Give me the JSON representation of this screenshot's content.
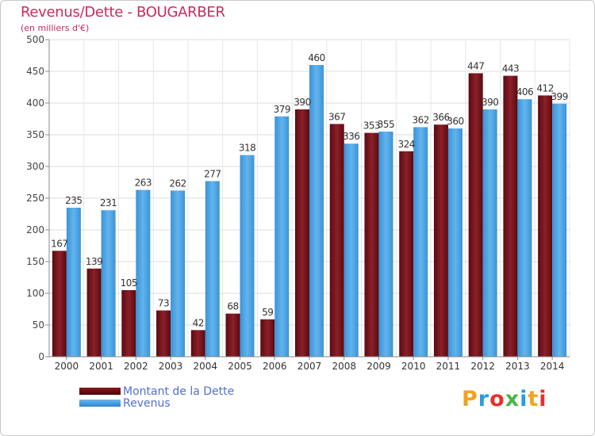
{
  "chart_data": {
    "type": "bar",
    "title": "Revenus/Dette - BOUGARBER",
    "subtitle": "(en milliers d'€)",
    "categories": [
      "2000",
      "2001",
      "2002",
      "2003",
      "2004",
      "2005",
      "2006",
      "2007",
      "2008",
      "2009",
      "2010",
      "2011",
      "2012",
      "2013",
      "2014"
    ],
    "series": [
      {
        "name": "Montant de la Dette",
        "color": "#7a1620",
        "values": [
          167,
          139,
          105,
          73,
          42,
          68,
          59,
          390,
          367,
          353,
          324,
          366,
          447,
          443,
          412
        ]
      },
      {
        "name": "Revenus",
        "color": "#4aa3e4",
        "values": [
          235,
          231,
          263,
          262,
          277,
          318,
          379,
          460,
          336,
          355,
          362,
          360,
          390,
          406,
          399
        ]
      }
    ],
    "ylim": [
      0,
      500
    ],
    "yticks": [
      0,
      50,
      100,
      150,
      200,
      250,
      300,
      350,
      400,
      450,
      500
    ],
    "grid": true,
    "legend_position": "bottom-left"
  },
  "legend": {
    "debt_label": "Montant de la Dette",
    "revenue_label": "Revenus"
  },
  "logo": {
    "letters": [
      "P",
      "r",
      "o",
      "x",
      "i",
      "t",
      "i"
    ],
    "colors": [
      "#f2a21d",
      "#2a9be0",
      "#e8302a",
      "#4ab54a",
      "#2a9be0",
      "#f2a21d",
      "#e8302a"
    ]
  }
}
